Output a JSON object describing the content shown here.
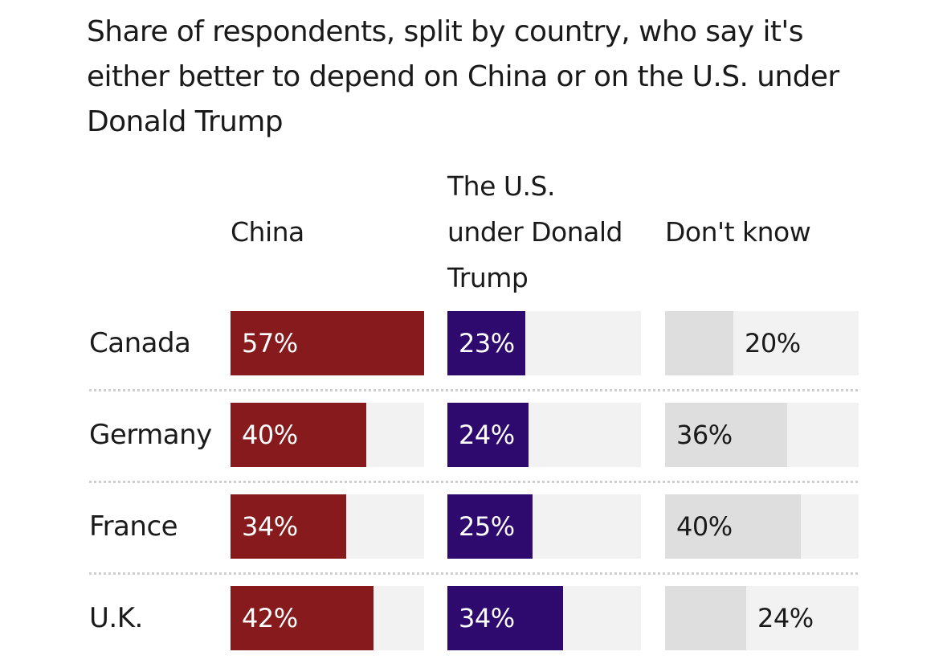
{
  "title": "Share of respondents, split by country, who say it's either better to depend on China or on the U.S. under Donald Trump",
  "colors": {
    "china": "#861a1c",
    "us": "#2e0a6e",
    "dont_know": "#dedede",
    "track": "#f2f2f2",
    "text_light": "#ffffff",
    "text_dark": "#1a1a1a"
  },
  "chart_data": {
    "type": "bar",
    "title": "Share of respondents, split by country, who say it's either better to depend on China or on the U.S. under Donald Trump",
    "categories": [
      "Canada",
      "Germany",
      "France",
      "U.K."
    ],
    "series": [
      {
        "name": "China",
        "values": [
          57,
          40,
          34,
          42
        ],
        "labels": [
          "57%",
          "40%",
          "34%",
          "42%"
        ]
      },
      {
        "name": "The U.S. under Donald Trump",
        "values": [
          23,
          24,
          25,
          34
        ],
        "labels": [
          "23%",
          "24%",
          "25%",
          "34%"
        ]
      },
      {
        "name": "Don't know",
        "values": [
          20,
          36,
          40,
          24
        ],
        "labels": [
          "20%",
          "36%",
          "40%",
          "24%"
        ]
      }
    ],
    "unit": "%",
    "ylim": [
      0,
      57
    ],
    "xlabel": "",
    "ylabel": ""
  }
}
